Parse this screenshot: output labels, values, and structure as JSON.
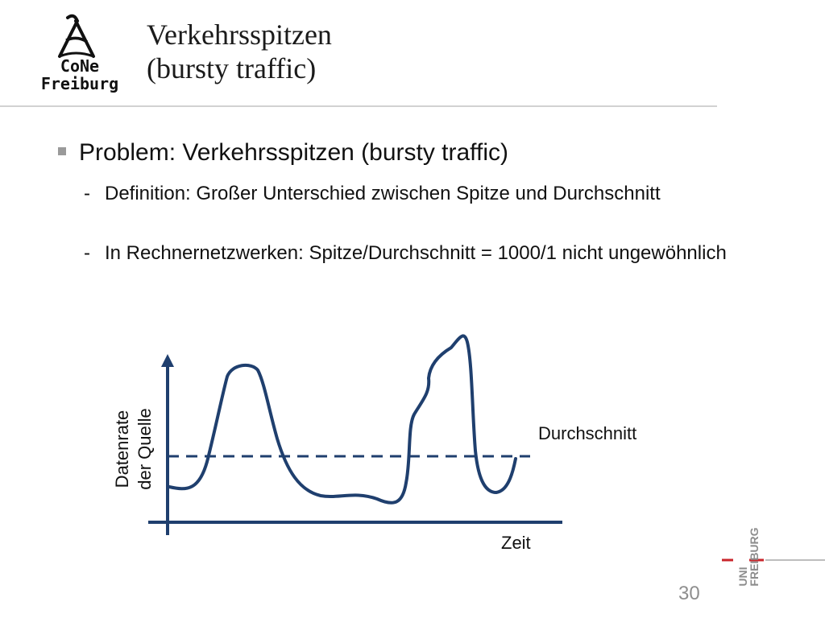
{
  "header": {
    "logo_line1": "CoNe",
    "logo_line2": "Freiburg",
    "title_line1": "Verkehrsspitzen",
    "title_line2": "(bursty traffic)"
  },
  "content": {
    "bullet": "Problem: Verkehrsspitzen (bursty traffic)",
    "subitems": [
      {
        "dash": "-",
        "text": "Definition: Großer Unterschied zwischen Spitze und Durchschnitt"
      },
      {
        "dash": "-",
        "text": "In Rechnernetzwerken: Spitze/Durchschnitt = 1000/1 nicht ungewöhnlich"
      }
    ]
  },
  "figure": {
    "ylabel_line1": "Datenrate",
    "ylabel_line2": "der Quelle",
    "xlabel": "Zeit",
    "average_label": "Durchschnitt",
    "colors": {
      "curve": "#1f3f6e",
      "axis": "#1f3f6e"
    }
  },
  "footer": {
    "page_number": "30",
    "university_logo_line1": "UNI",
    "university_logo_line2": "FREIBURG"
  }
}
